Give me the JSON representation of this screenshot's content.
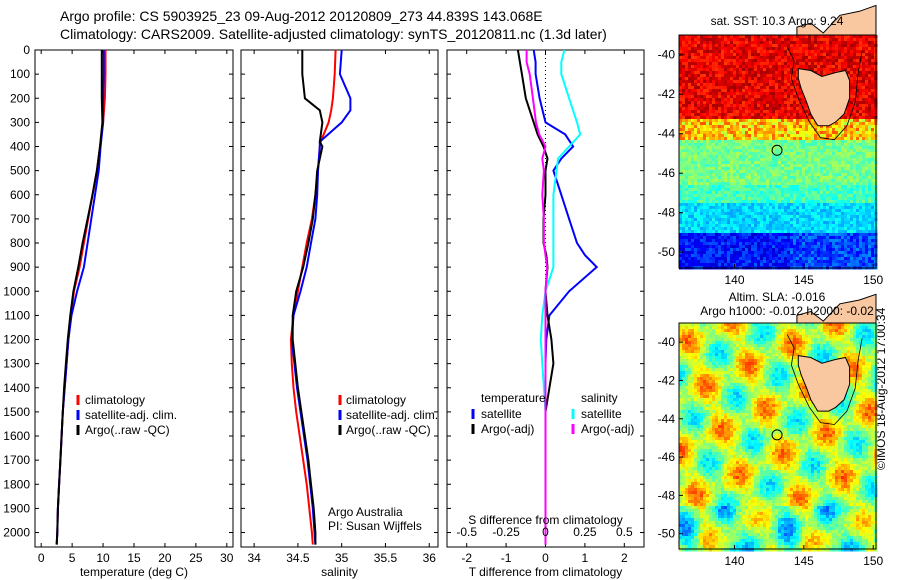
{
  "header": {
    "line1": "Argo profile: CS 5903925_23 09-Aug-2012 20120809_273 44.839S 143.068E",
    "line2": "Climatology: CARS2009. Satellite-adjusted climatology: synTS_20120811.nc (1.3d later)"
  },
  "stamp": "©IMOS 18-Aug-2012 17:00:34",
  "panels_text": {
    "argo_note_1": "Argo Australia",
    "argo_note_2": "PI: Susan Wijffels",
    "diff_top_axis": "S difference from climatology"
  },
  "legends": {
    "temperature": [
      "climatology",
      "satellite-adj. clim.",
      "Argo(..raw -QC)"
    ],
    "salinity": [
      "climatology",
      "satellite-adj. clim.",
      "Argo(..raw -QC)"
    ],
    "diff_left_title": "temperature",
    "diff_right_title": "salinity",
    "diff_left": [
      "satellite",
      "Argo(-adj)"
    ],
    "diff_right": [
      "satellite",
      "Argo(-adj)"
    ]
  },
  "maps": {
    "sst_title": "sat. SST: 10.3 Argo: 9.24",
    "sla_title_1": "Altim. SLA: -0.016",
    "sla_title_2": "Argo h1000: -0.012 h2000: -0.02",
    "lon_ticks": [
      "140",
      "145",
      "150"
    ],
    "lat_ticks": [
      "-40",
      "-42",
      "-44",
      "-46",
      "-48",
      "-50"
    ],
    "float_lon": 143.068,
    "float_lat": -44.839
  },
  "colors": {
    "climatology": "#ff0000",
    "satellite": "#0000ff",
    "argo": "#000000",
    "sal_satellite": "#00ffff",
    "sal_argo": "#ff00ff",
    "land": "#f9c8a0"
  },
  "chart_data": [
    {
      "type": "line",
      "id": "temperature",
      "xlabel": "temperature (deg C)",
      "ylabel": "",
      "xlim": [
        -1,
        31
      ],
      "ylim": [
        2060,
        0
      ],
      "xticks": [
        0,
        5,
        10,
        15,
        20,
        25,
        30
      ],
      "yticks": [
        0,
        100,
        200,
        300,
        400,
        500,
        600,
        700,
        800,
        900,
        1000,
        1100,
        1200,
        1300,
        1400,
        1500,
        1600,
        1700,
        1800,
        1900,
        2000
      ],
      "y": [
        0,
        100,
        200,
        300,
        400,
        500,
        600,
        700,
        800,
        900,
        1000,
        1100,
        1200,
        1300,
        1400,
        1500,
        1600,
        1700,
        1800,
        1900,
        2000,
        2050
      ],
      "series": [
        {
          "name": "climatology",
          "values": [
            10.4,
            10.4,
            10.3,
            10.0,
            9.5,
            9.0,
            8.3,
            7.6,
            6.9,
            6.2,
            5.3,
            4.8,
            4.4,
            4.1,
            3.8,
            3.5,
            3.3,
            3.1,
            2.9,
            2.7,
            2.6,
            2.5
          ]
        },
        {
          "name": "satellite-adj. clim.",
          "values": [
            10.1,
            10.1,
            10.0,
            10.0,
            9.6,
            9.3,
            8.7,
            8.1,
            7.5,
            6.9,
            5.8,
            4.9,
            4.4,
            4.1,
            3.8,
            3.5,
            3.3,
            3.1,
            2.9,
            2.7,
            2.6,
            2.5
          ]
        },
        {
          "name": "Argo(..raw -QC)",
          "values": [
            9.8,
            9.8,
            9.8,
            9.9,
            9.5,
            9.0,
            8.3,
            7.5,
            6.7,
            6.0,
            5.2,
            4.7,
            4.3,
            4.0,
            3.7,
            3.5,
            3.3,
            3.1,
            2.9,
            2.7,
            2.6,
            2.5
          ]
        }
      ]
    },
    {
      "type": "line",
      "id": "salinity",
      "xlabel": "salinity",
      "ylabel": "",
      "xlim": [
        33.85,
        36.1
      ],
      "ylim": [
        2060,
        0
      ],
      "xticks": [
        34,
        34.5,
        35,
        35.5,
        36
      ],
      "xtick_labels": [
        "34",
        "34.5",
        "35",
        "35.5",
        "36"
      ],
      "y": [
        0,
        100,
        200,
        250,
        300,
        380,
        400,
        500,
        600,
        700,
        800,
        900,
        1000,
        1100,
        1200,
        1300,
        1400,
        1500,
        1600,
        1700,
        1800,
        1900,
        2000,
        2050
      ],
      "series": [
        {
          "name": "climatology",
          "values": [
            34.93,
            34.92,
            34.9,
            34.88,
            34.85,
            34.76,
            34.75,
            34.73,
            34.7,
            34.66,
            34.6,
            34.55,
            34.5,
            34.45,
            34.42,
            34.43,
            34.45,
            34.48,
            34.52,
            34.56,
            34.6,
            34.63,
            34.66,
            34.67
          ]
        },
        {
          "name": "satellite-adj. clim.",
          "values": [
            35.0,
            34.98,
            35.1,
            35.1,
            35.0,
            34.75,
            34.75,
            34.73,
            34.72,
            34.7,
            34.65,
            34.6,
            34.53,
            34.45,
            34.43,
            34.46,
            34.49,
            34.53,
            34.57,
            34.61,
            34.64,
            34.67,
            34.69,
            34.7
          ]
        },
        {
          "name": "Argo(..raw -QC)",
          "values": [
            34.55,
            34.55,
            34.58,
            34.75,
            34.78,
            34.75,
            34.78,
            34.72,
            34.7,
            34.67,
            34.62,
            34.56,
            34.48,
            34.44,
            34.44,
            34.47,
            34.5,
            34.54,
            34.58,
            34.62,
            34.65,
            34.68,
            34.7,
            34.7
          ]
        }
      ]
    },
    {
      "type": "line",
      "id": "differences",
      "xlabel": "T difference from climatology",
      "ylabel": "",
      "xlim": [
        -2.5,
        2.5
      ],
      "ylim": [
        2060,
        0
      ],
      "xticks": [
        -2,
        -1,
        0,
        1,
        2
      ],
      "top_axis_label": "S difference from climatology",
      "top_xticks": [
        -0.5,
        -0.25,
        0,
        0.25,
        0.5
      ],
      "top_xtick_labels": [
        "-0.5",
        "-0.25",
        "0",
        "0.25",
        "0.5"
      ],
      "y": [
        0,
        50,
        100,
        200,
        300,
        350,
        400,
        450,
        500,
        600,
        700,
        800,
        850,
        900,
        1000,
        1100,
        1200,
        1300,
        1400,
        1500,
        1600,
        1700,
        1800,
        1900,
        2000,
        2050
      ],
      "series": [
        {
          "name": "temperature satellite",
          "values": [
            -0.3,
            -0.25,
            -0.25,
            -0.15,
            0.0,
            0.5,
            0.7,
            0.4,
            0.2,
            0.4,
            0.6,
            0.8,
            1.0,
            1.3,
            0.6,
            0.1,
            0.02,
            0.0,
            0.0,
            0.0,
            0.0,
            0.0,
            0.0,
            0.0,
            0.0,
            0.0
          ]
        },
        {
          "name": "temperature Argo(-adj)",
          "values": [
            -0.7,
            -0.65,
            -0.6,
            -0.5,
            -0.3,
            -0.2,
            -0.05,
            0.05,
            0.0,
            0.0,
            -0.05,
            -0.05,
            0.02,
            0.05,
            0.0,
            0.05,
            0.15,
            0.2,
            0.1,
            0.0,
            0.0,
            0.0,
            0.0,
            0.0,
            0.0,
            0.0
          ]
        },
        {
          "name": "salinity satellite",
          "values": [
            0.12,
            0.1,
            0.1,
            0.15,
            0.2,
            0.22,
            0.15,
            0.08,
            0.07,
            0.05,
            0.05,
            0.05,
            0.05,
            0.05,
            0.0,
            -0.02,
            -0.03,
            -0.02,
            -0.01,
            0.0,
            0.0,
            0.0,
            0.0,
            0.0,
            0.0,
            0.0
          ]
        },
        {
          "name": "salinity Argo(-adj)",
          "values": [
            -0.12,
            -0.12,
            -0.1,
            -0.08,
            -0.06,
            -0.04,
            0.0,
            -0.02,
            -0.01,
            -0.02,
            -0.01,
            -0.01,
            0.0,
            0.01,
            0.0,
            0.0,
            0.0,
            0.0,
            0.0,
            0.0,
            0.0,
            0.0,
            0.0,
            0.0,
            0.0,
            0.0
          ]
        }
      ]
    }
  ]
}
